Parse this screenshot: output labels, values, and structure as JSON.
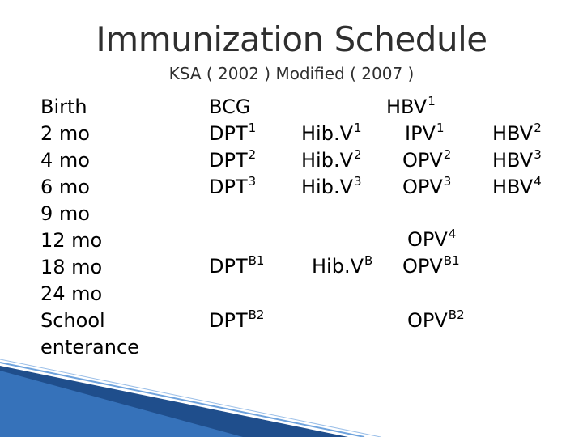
{
  "title": "Immunization Schedule",
  "subtitle": "KSA ( 2002 ) Modified ( 2007 )",
  "ages": [
    "Birth",
    "2 mo",
    "4 mo",
    "6 mo",
    "9 mo",
    "12 mo",
    "18 mo",
    "24 mo",
    "School",
    "enterance"
  ],
  "vaccines": {
    "bcg": {
      "name": "BCG"
    },
    "dpt1": {
      "name": "DPT",
      "dose": "1"
    },
    "dpt2": {
      "name": "DPT",
      "dose": "2"
    },
    "dpt3": {
      "name": "DPT",
      "dose": "3"
    },
    "dptb1": {
      "name": "DPT",
      "dose": "B1"
    },
    "dptb2": {
      "name": "DPT",
      "dose": "B2"
    },
    "hib1": {
      "name": "Hib.V",
      "dose": "1"
    },
    "hib2": {
      "name": "Hib.V",
      "dose": "2"
    },
    "hib3": {
      "name": "Hib.V",
      "dose": "3"
    },
    "hibb": {
      "name": "Hib.V",
      "dose": "B"
    },
    "hbv1": {
      "name": "HBV",
      "dose": "1"
    },
    "ipv1": {
      "name": "IPV",
      "dose": "1"
    },
    "opv2": {
      "name": "OPV",
      "dose": "2"
    },
    "opv3": {
      "name": "OPV",
      "dose": "3"
    },
    "opv4": {
      "name": "OPV",
      "dose": "4"
    },
    "opvb1": {
      "name": "OPV",
      "dose": "B1"
    },
    "opvb2": {
      "name": "OPV",
      "dose": "B2"
    },
    "hbv2": {
      "name": "HBV",
      "dose": "2"
    },
    "hbv3": {
      "name": "HBV",
      "dose": "3"
    },
    "hbv4": {
      "name": "HBV",
      "dose": "4"
    }
  }
}
